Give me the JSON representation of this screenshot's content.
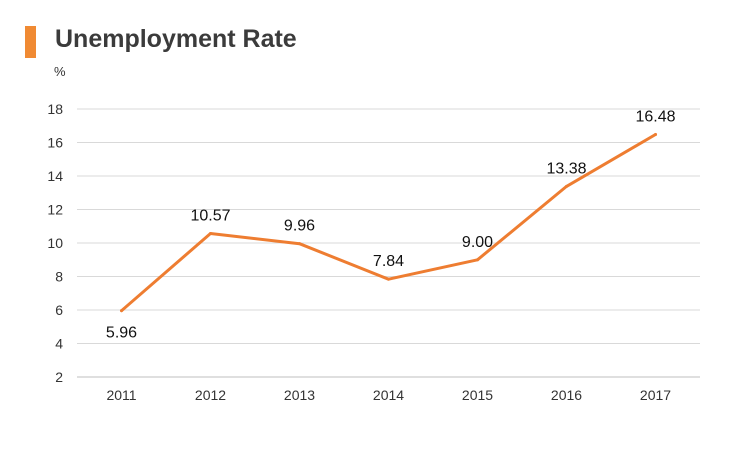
{
  "colors": {
    "accent": "#f08a33",
    "line": "#ee7d31",
    "grid": "#d9d9d9",
    "axis": "#bfbfbf"
  },
  "chart_data": {
    "type": "line",
    "title": "Unemployment Rate",
    "ylabel": "%",
    "xlabel": "",
    "categories": [
      "2011",
      "2012",
      "2013",
      "2014",
      "2015",
      "2016",
      "2017"
    ],
    "series": [
      {
        "values": [
          5.96,
          10.57,
          9.96,
          7.84,
          9.0,
          13.38,
          16.48
        ],
        "labels": [
          "5.96",
          "10.57",
          "9.96",
          "7.84",
          "9.00",
          "13.38",
          "16.48"
        ]
      }
    ],
    "ylim": [
      2,
      18
    ],
    "yticks": [
      "2",
      "4",
      "6",
      "8",
      "10",
      "12",
      "14",
      "16",
      "18"
    ],
    "grid": true,
    "legend": "none"
  }
}
